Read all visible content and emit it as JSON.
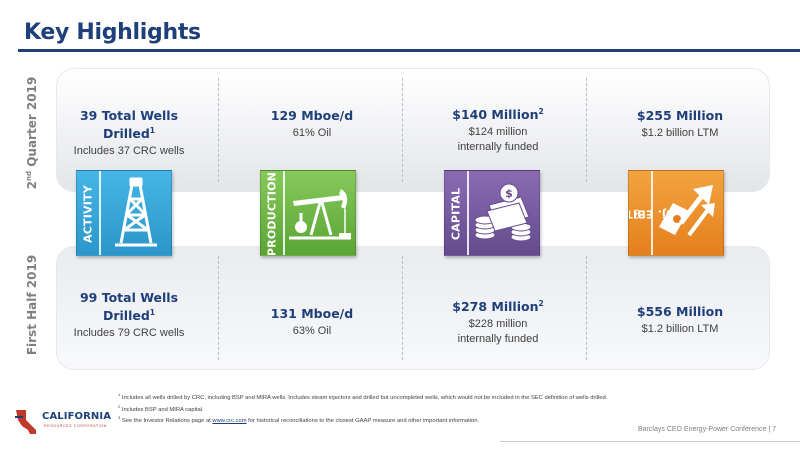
{
  "title": "Key Highlights",
  "periods": {
    "top": {
      "main": "2",
      "sup": "nd",
      "rest": " Quarter 2019"
    },
    "bottom": "First Half 2019"
  },
  "categories": [
    {
      "label": "ACTIVITY",
      "icon": "oil-derrick-icon",
      "color": "#2b96c9"
    },
    {
      "label": "PRODUCTION",
      "icon": "pumpjack-icon",
      "color": "#5aa535"
    },
    {
      "label": "CAPITAL",
      "icon": "coins-cash-icon",
      "color": "#654b8e"
    },
    {
      "label": "Adj. EBITDAX",
      "label_sup": "(3)",
      "icon": "money-growth-arrow-icon",
      "color": "#e57f1e"
    }
  ],
  "q2": {
    "activity": {
      "head": "39 Total Wells",
      "head2": "Drilled",
      "head2_sup": "1",
      "sub": "Includes 37 CRC wells"
    },
    "production": {
      "head": "129 Mboe/d",
      "sub": "61% Oil"
    },
    "capital": {
      "head": "$140 Million",
      "head_sup": "2",
      "sub1": "$124 million",
      "sub2": "internally funded"
    },
    "ebitdax": {
      "head": "$255 Million",
      "sub": "$1.2 billion LTM"
    }
  },
  "h1": {
    "activity": {
      "head": "99 Total Wells",
      "head2": "Drilled",
      "head2_sup": "1",
      "sub": "Includes 79 CRC wells"
    },
    "production": {
      "head": "131 Mboe/d",
      "sub": "63% Oil"
    },
    "capital": {
      "head": "$278 Million",
      "head_sup": "2",
      "sub1": "$228 million",
      "sub2": "internally funded"
    },
    "ebitdax": {
      "head": "$556 Million",
      "sub": "$1.2 billion LTM"
    }
  },
  "footnotes": {
    "n1": {
      "sup": "1",
      "text": " Includes all wells drilled by CRC, including BSP and MIRA wells. Includes steam injectors and drilled but uncompleted wells, which would not be included in the SEC definition of wells drilled."
    },
    "n2": {
      "sup": "2",
      "text": " Includes BSP and MIRA capital."
    },
    "n3": {
      "sup": "3",
      "pre": " See the Investor Relations page at ",
      "link": "www.crc.com",
      "post": " for historical reconciliations to the closest GAAP measure and other important information."
    }
  },
  "logo": {
    "name": "CALIFORNIA",
    "tagline": "RESOURCES CORPORATION"
  },
  "footer": "Barclays CEO Energy-Power Conference | 7"
}
